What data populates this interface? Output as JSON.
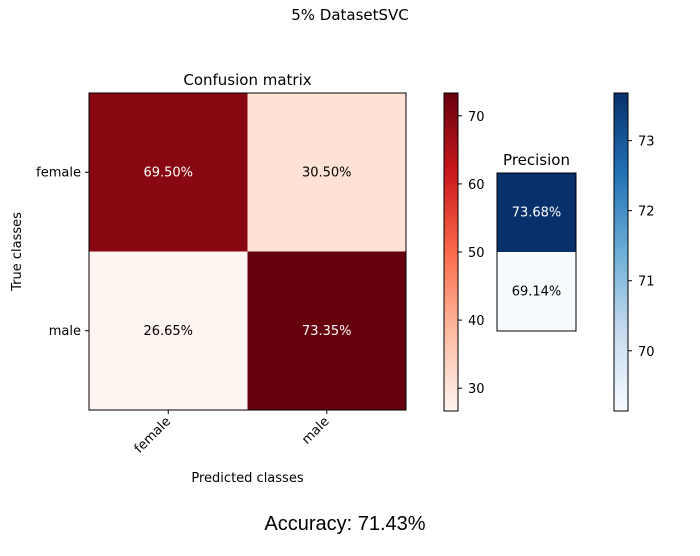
{
  "figure": {
    "suptitle": "5% DatasetSVC",
    "accuracy_text": "Accuracy: 71.43%"
  },
  "chart_data": [
    {
      "type": "heatmap",
      "title": "Confusion matrix",
      "xlabel": "Predicted classes",
      "ylabel": "True classes",
      "x_categories": [
        "female",
        "male"
      ],
      "y_categories": [
        "female",
        "male"
      ],
      "values": [
        [
          69.5,
          30.5
        ],
        [
          26.65,
          73.35
        ]
      ],
      "cell_labels": [
        [
          "69.50%",
          "30.50%"
        ],
        [
          "26.65%",
          "73.35%"
        ]
      ],
      "colormap": "Reds",
      "colorbar": {
        "range": [
          26.65,
          73.35
        ],
        "ticks": [
          30,
          40,
          50,
          60,
          70
        ]
      }
    },
    {
      "type": "heatmap",
      "title": "Precision",
      "y_categories": [
        "female",
        "male"
      ],
      "values": [
        73.68,
        69.14
      ],
      "cell_labels": [
        "73.68%",
        "69.14%"
      ],
      "colormap": "Blues",
      "colorbar": {
        "range": [
          69.14,
          73.68
        ],
        "ticks": [
          70,
          71,
          72,
          73
        ]
      }
    }
  ]
}
